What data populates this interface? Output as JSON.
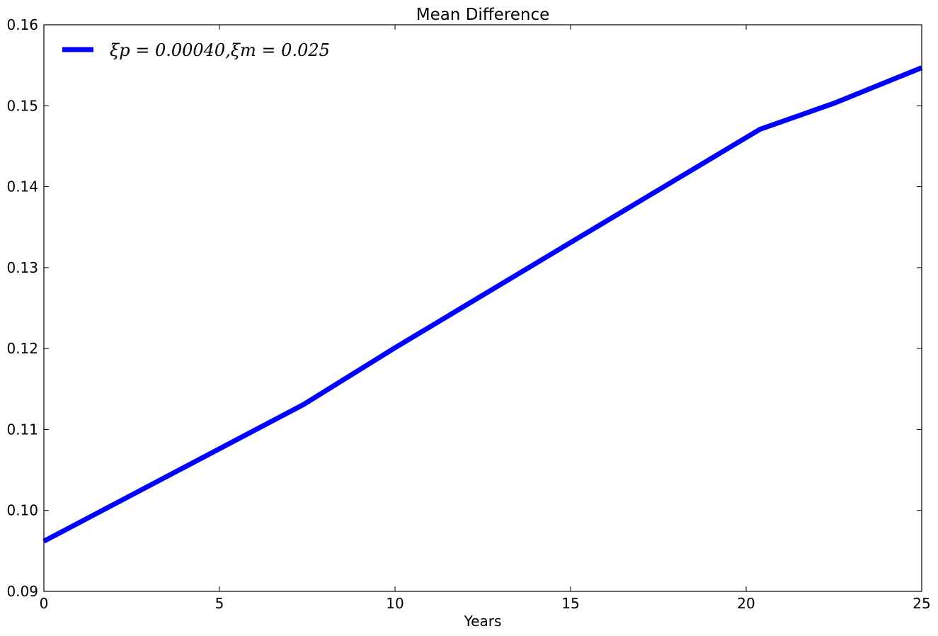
{
  "chart_data": {
    "type": "line",
    "title": "Mean Difference",
    "xlabel": "Years",
    "ylabel": "",
    "xlim": [
      0,
      25
    ],
    "ylim": [
      0.09,
      0.16
    ],
    "x_ticks": [
      0,
      5,
      10,
      15,
      20,
      25
    ],
    "x_tick_labels": [
      "0",
      "5",
      "10",
      "15",
      "20",
      "25"
    ],
    "y_ticks": [
      0.09,
      0.1,
      0.11,
      0.12,
      0.13,
      0.14,
      0.15,
      0.16
    ],
    "y_tick_labels": [
      "0.09",
      "0.10",
      "0.11",
      "0.12",
      "0.13",
      "0.14",
      "0.15",
      "0.16"
    ],
    "grid": false,
    "legend_position": "top-left",
    "series": [
      {
        "name": "ξp = 0.00040,ξm = 0.025",
        "color": "#0000ff",
        "x": [
          0,
          7.4,
          10,
          15,
          20.4,
          22.5,
          25
        ],
        "y": [
          0.0962,
          0.1131,
          0.1201,
          0.1331,
          0.1471,
          0.1503,
          0.1547
        ]
      }
    ]
  }
}
